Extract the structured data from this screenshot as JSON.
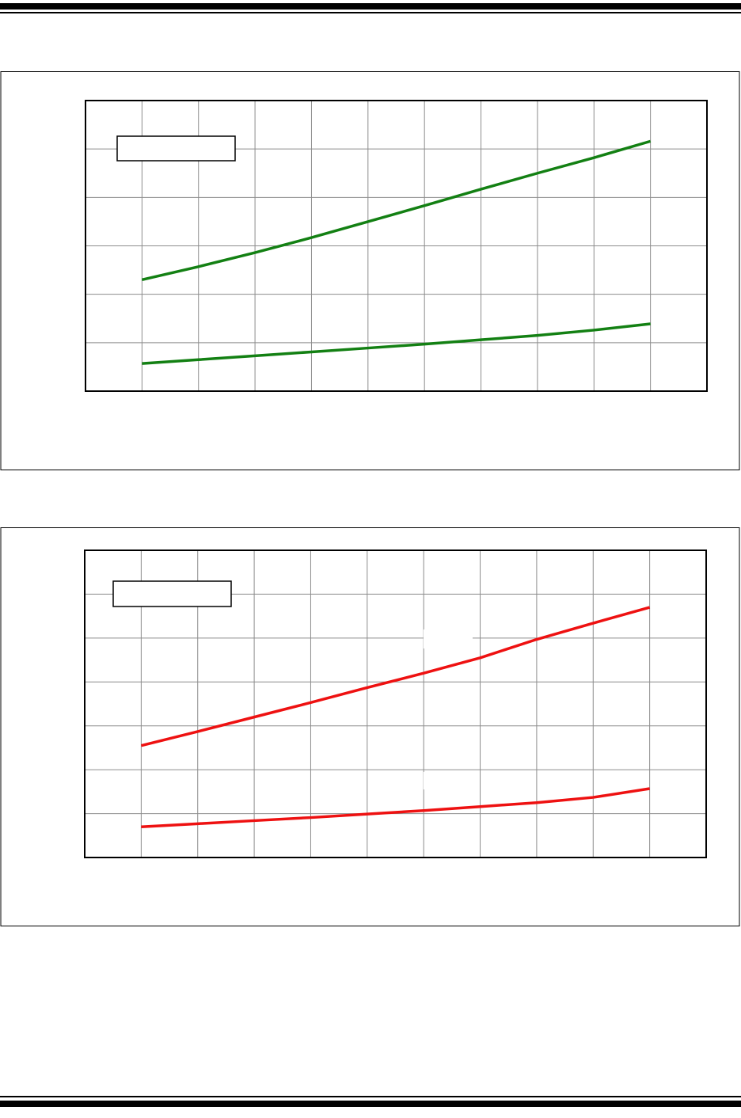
{
  "chart_data": [
    {
      "type": "line",
      "grid": true,
      "x": [
        1,
        2,
        3,
        4,
        5,
        6,
        7,
        8,
        9,
        10
      ],
      "xlim": [
        0,
        11
      ],
      "xticks": [
        0,
        1,
        2,
        3,
        4,
        5,
        6,
        7,
        8,
        9,
        10,
        11
      ],
      "ylim": [
        0,
        6
      ],
      "yticks": [
        0,
        1,
        2,
        3,
        4,
        5,
        6
      ],
      "series": [
        {
          "color": "#138013",
          "values": [
            2.3,
            2.57,
            2.86,
            3.17,
            3.5,
            3.83,
            4.17,
            4.5,
            4.82,
            5.16
          ]
        },
        {
          "color": "#138013",
          "values": [
            0.57,
            0.65,
            0.73,
            0.81,
            0.89,
            0.97,
            1.06,
            1.15,
            1.26,
            1.39
          ]
        }
      ]
    },
    {
      "type": "line",
      "grid": true,
      "x": [
        1,
        2,
        3,
        4,
        5,
        6,
        7,
        8,
        9,
        10
      ],
      "xlim": [
        0,
        11
      ],
      "xticks": [
        0,
        1,
        2,
        3,
        4,
        5,
        6,
        7,
        8,
        9,
        10,
        11
      ],
      "ylim": [
        0,
        7
      ],
      "yticks": [
        0,
        1,
        2,
        3,
        4,
        5,
        6,
        7
      ],
      "series": [
        {
          "color": "#ee1111",
          "values": [
            2.55,
            2.87,
            3.2,
            3.53,
            3.87,
            4.2,
            4.55,
            4.97,
            5.34,
            5.7
          ]
        },
        {
          "color": "#ee1111",
          "values": [
            0.7,
            0.77,
            0.84,
            0.91,
            0.99,
            1.07,
            1.16,
            1.25,
            1.37,
            1.57
          ]
        }
      ]
    }
  ]
}
